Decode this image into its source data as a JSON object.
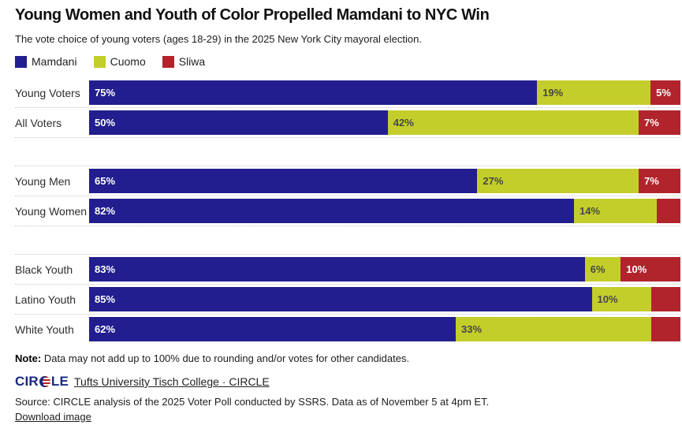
{
  "header": {
    "title": "Young Women and Youth of Color Propelled Mamdani to NYC Win",
    "subtitle": "The vote choice of young voters (ages 18-29) in the 2025 New York City mayoral election."
  },
  "colors": {
    "mamdani": "#221E8F",
    "cuomo": "#C4CE2A",
    "sliwa": "#B2242C",
    "separator": "#C9C9C9",
    "logo_blue": "#1A2B80"
  },
  "chart_data": {
    "type": "bar",
    "stacked": true,
    "orientation": "horizontal",
    "unit": "percent",
    "legend_position": "top",
    "categories": [
      "Young Voters",
      "All Voters",
      "Young Men",
      "Young Women",
      "Black Youth",
      "Latino Youth",
      "White Youth"
    ],
    "groups": [
      [
        "Young Voters",
        "All Voters"
      ],
      [
        "Young Men",
        "Young Women"
      ],
      [
        "Black Youth",
        "Latino Youth",
        "White Youth"
      ]
    ],
    "series": [
      {
        "name": "Mamdani",
        "color": "#221E8F",
        "label_color": "#FFFFFF",
        "values": [
          75,
          50,
          65,
          82,
          83,
          85,
          62
        ]
      },
      {
        "name": "Cuomo",
        "color": "#C4CE2A",
        "label_color": "#474747",
        "values": [
          19,
          42,
          27,
          14,
          6,
          10,
          33
        ]
      },
      {
        "name": "Sliwa",
        "color": "#B2242C",
        "label_color": "#FFFFFF",
        "values": [
          5,
          7,
          7,
          4,
          10,
          5,
          5
        ]
      }
    ],
    "shown_labels": {
      "Young Voters": [
        "75%",
        "19%",
        "5%"
      ],
      "All Voters": [
        "50%",
        "42%",
        "7%"
      ],
      "Young Men": [
        "65%",
        "27%",
        "7%"
      ],
      "Young Women": [
        "82%",
        "14%",
        ""
      ],
      "Black Youth": [
        "83%",
        "6%",
        "10%"
      ],
      "Latino Youth": [
        "85%",
        "10%",
        ""
      ],
      "White Youth": [
        "62%",
        "33%",
        ""
      ]
    }
  },
  "footer": {
    "note_label": "Note:",
    "note_text": " Data may not add up to 100% due to rounding and/or votes for other candidates.",
    "logo": {
      "left": "CIR",
      "right": "LE"
    },
    "attribution": "Tufts University Tisch College · CIRCLE",
    "source": "Source: CIRCLE analysis of the 2025 Voter Poll conducted by SSRS. Data as of November 5 at 4pm ET.",
    "download_label": "Download image"
  }
}
